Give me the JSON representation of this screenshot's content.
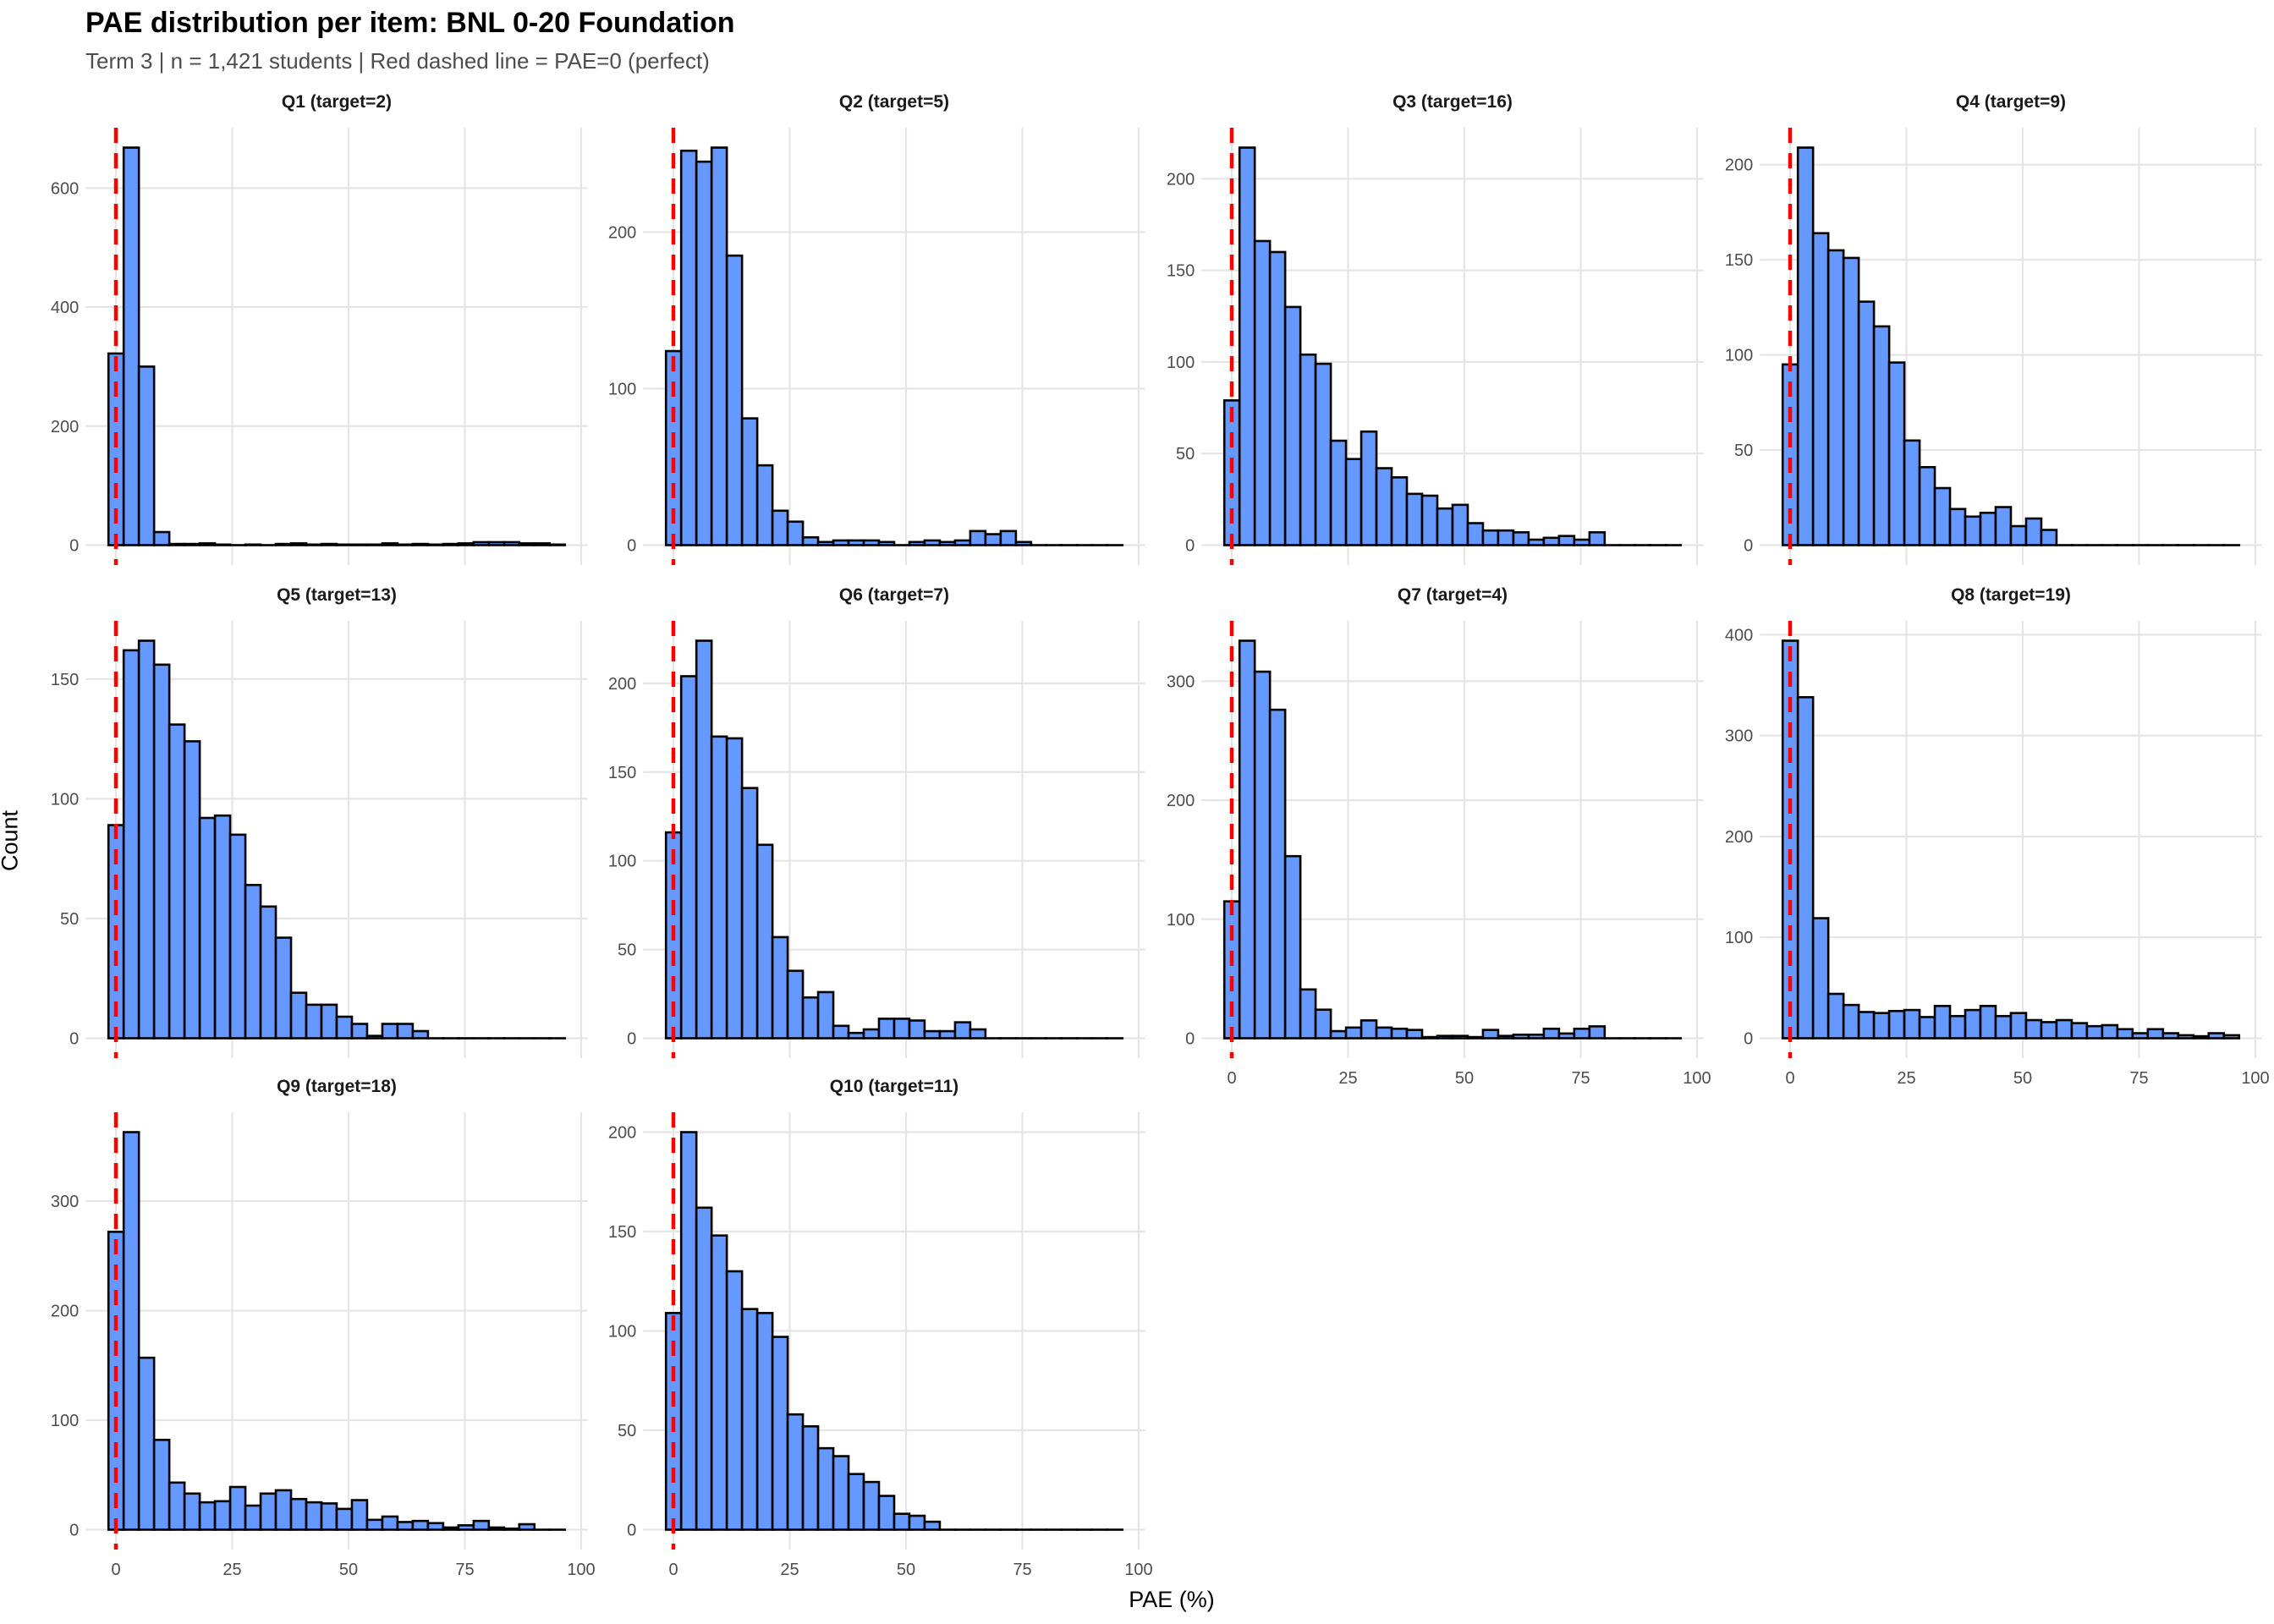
{
  "header": {
    "title": "PAE distribution per item: BNL 0-20 Foundation",
    "subtitle": "Term 3 | n = 1,421 students | Red dashed line = PAE=0 (perfect)"
  },
  "colors": {
    "bar_fill": "#6699FF",
    "bar_outline": "#000000",
    "reference_line": "#FF0000",
    "grid": "#E5E5E5"
  },
  "chart_data": {
    "type": "bar",
    "subtype": "faceted-histogram",
    "title": "PAE distribution per item: BNL 0-20 Foundation",
    "subtitle": "Term 3 | n = 1,421 students | Red dashed line = PAE=0 (perfect)",
    "xlabel": "PAE (%)",
    "ylabel": "Count",
    "xlim": [
      0,
      100
    ],
    "x_ticks": [
      0,
      25,
      50,
      75,
      100
    ],
    "x_tick_labels": [
      "0",
      "25",
      "50",
      "75",
      "100"
    ],
    "bins": 30,
    "bin_start": -1.6,
    "bin_width": 3.27,
    "reference_line": {
      "x": 0,
      "style": "dashed",
      "label": "PAE=0 (perfect)"
    },
    "grid": true,
    "legend": "none",
    "facet_columns": 4,
    "panels": [
      {
        "label": "Q1 (target=2)",
        "y_ticks": [
          0,
          200,
          400,
          600
        ],
        "values": [
          322,
          668,
          300,
          22,
          2,
          2,
          3,
          1,
          0,
          1,
          0,
          2,
          3,
          1,
          2,
          1,
          1,
          1,
          3,
          1,
          2,
          1,
          2,
          3,
          5,
          5,
          5,
          3,
          3,
          1
        ]
      },
      {
        "label": "Q2 (target=5)",
        "y_ticks": [
          0,
          100,
          200
        ],
        "values": [
          124,
          252,
          245,
          254,
          185,
          81,
          51,
          22,
          15,
          5,
          2,
          3,
          3,
          3,
          2,
          0,
          2,
          3,
          2,
          3,
          9,
          7,
          9,
          2,
          0,
          0,
          0,
          0,
          0,
          0
        ]
      },
      {
        "label": "Q3 (target=16)",
        "y_ticks": [
          0,
          50,
          100,
          150,
          200
        ],
        "values": [
          79,
          217,
          166,
          160,
          130,
          104,
          99,
          57,
          47,
          62,
          42,
          37,
          28,
          27,
          20,
          22,
          12,
          8,
          8,
          7,
          3,
          4,
          5,
          3,
          7,
          0,
          0,
          0,
          0,
          0
        ]
      },
      {
        "label": "Q4 (target=9)",
        "y_ticks": [
          0,
          50,
          100,
          150,
          200
        ],
        "values": [
          95,
          209,
          164,
          155,
          151,
          128,
          115,
          96,
          55,
          41,
          30,
          19,
          15,
          17,
          20,
          10,
          14,
          8,
          0,
          0,
          0,
          0,
          0,
          0,
          0,
          0,
          0,
          0,
          0,
          0
        ]
      },
      {
        "label": "Q5 (target=13)",
        "y_ticks": [
          0,
          50,
          100,
          150
        ],
        "values": [
          89,
          162,
          166,
          156,
          131,
          124,
          92,
          93,
          85,
          64,
          55,
          42,
          19,
          14,
          14,
          9,
          6,
          1,
          6,
          6,
          3,
          0,
          0,
          0,
          0,
          0,
          0,
          0,
          0,
          0
        ]
      },
      {
        "label": "Q6 (target=7)",
        "y_ticks": [
          0,
          50,
          100,
          150,
          200
        ],
        "values": [
          116,
          204,
          224,
          170,
          169,
          141,
          109,
          57,
          38,
          23,
          26,
          7,
          3,
          5,
          11,
          11,
          10,
          4,
          4,
          9,
          5,
          0,
          0,
          0,
          0,
          0,
          0,
          0,
          0,
          0
        ]
      },
      {
        "label": "Q7 (target=4)",
        "y_ticks": [
          0,
          100,
          200,
          300
        ],
        "values": [
          115,
          334,
          308,
          276,
          153,
          41,
          24,
          6,
          9,
          15,
          9,
          8,
          7,
          1,
          2,
          2,
          1,
          7,
          2,
          3,
          3,
          8,
          4,
          8,
          10,
          0,
          0,
          0,
          0,
          0
        ]
      },
      {
        "label": "Q8 (target=19)",
        "y_ticks": [
          0,
          100,
          200,
          300,
          400
        ],
        "values": [
          394,
          338,
          119,
          44,
          33,
          26,
          25,
          27,
          28,
          21,
          32,
          22,
          28,
          32,
          22,
          25,
          18,
          16,
          18,
          15,
          12,
          13,
          9,
          5,
          9,
          5,
          3,
          2,
          5,
          3
        ]
      },
      {
        "label": "Q9 (target=18)",
        "y_ticks": [
          0,
          100,
          200,
          300
        ],
        "values": [
          272,
          363,
          157,
          82,
          43,
          33,
          25,
          26,
          39,
          22,
          33,
          36,
          28,
          25,
          24,
          19,
          27,
          9,
          12,
          7,
          8,
          6,
          2,
          4,
          8,
          2,
          1,
          5,
          0,
          0
        ]
      },
      {
        "label": "Q10 (target=11)",
        "y_ticks": [
          0,
          50,
          100,
          150,
          200
        ],
        "values": [
          109,
          200,
          162,
          148,
          130,
          111,
          109,
          97,
          58,
          52,
          41,
          37,
          28,
          24,
          17,
          8,
          7,
          4,
          0,
          0,
          0,
          0,
          0,
          0,
          0,
          0,
          0,
          0,
          0,
          0
        ]
      }
    ]
  }
}
